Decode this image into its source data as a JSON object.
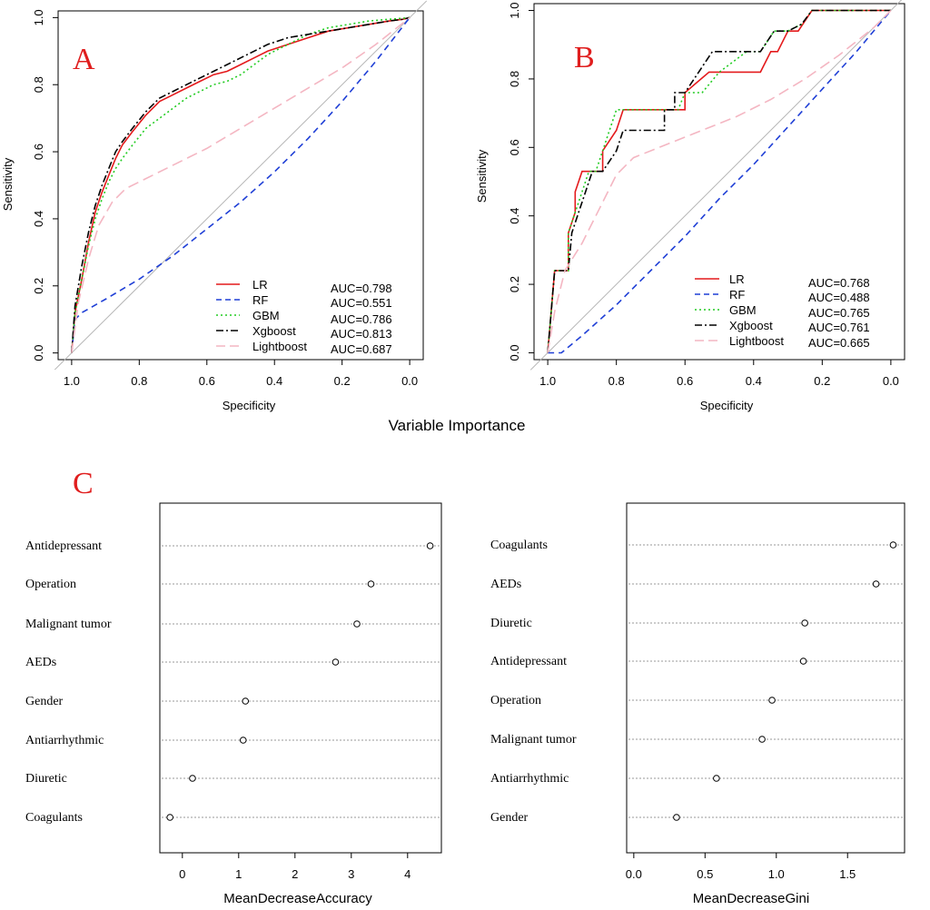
{
  "section_title": "Variable Importance",
  "chart_data": [
    {
      "panel": "A",
      "type": "line",
      "xlabel": "Specificity",
      "ylabel": "Sensitivity",
      "x_reversed": true,
      "xlim": [
        1.04,
        -0.04
      ],
      "ylim": [
        -0.02,
        1.02
      ],
      "xticks": [
        1.0,
        0.8,
        0.6,
        0.4,
        0.2,
        0.0
      ],
      "xtick_labels": [
        "1.0",
        "0.8",
        "0.6",
        "0.4",
        "0.2",
        "0.0"
      ],
      "yticks": [
        0.0,
        0.2,
        0.4,
        0.6,
        0.8,
        1.0
      ],
      "ytick_labels": [
        "0.0",
        "0.2",
        "0.4",
        "0.6",
        "0.8",
        "1.0"
      ],
      "reference_line": [
        [
          1,
          0
        ],
        [
          0,
          1
        ]
      ],
      "series": [
        {
          "name": "LR",
          "auc_label": "AUC=0.798",
          "color": "#e41a1c",
          "dash": "",
          "x": [
            1.0,
            0.99,
            0.97,
            0.95,
            0.93,
            0.91,
            0.89,
            0.87,
            0.85,
            0.82,
            0.78,
            0.74,
            0.7,
            0.66,
            0.62,
            0.58,
            0.54,
            0.5,
            0.46,
            0.42,
            0.36,
            0.3,
            0.24,
            0.18,
            0.12,
            0.06,
            0.02,
            0.0
          ],
          "y": [
            0.0,
            0.12,
            0.22,
            0.33,
            0.42,
            0.48,
            0.53,
            0.58,
            0.62,
            0.66,
            0.71,
            0.75,
            0.77,
            0.79,
            0.81,
            0.83,
            0.84,
            0.86,
            0.88,
            0.9,
            0.92,
            0.94,
            0.96,
            0.97,
            0.98,
            0.99,
            0.995,
            1.0
          ]
        },
        {
          "name": "RF",
          "auc_label": "AUC=0.551",
          "color": "#1f3fd6",
          "dash": "7,5",
          "x": [
            1.0,
            0.99,
            0.97,
            0.9,
            0.8,
            0.7,
            0.6,
            0.5,
            0.4,
            0.3,
            0.2,
            0.1,
            0.0
          ],
          "y": [
            0.0,
            0.1,
            0.12,
            0.16,
            0.22,
            0.29,
            0.37,
            0.45,
            0.54,
            0.64,
            0.75,
            0.87,
            1.0
          ]
        },
        {
          "name": "GBM",
          "auc_label": "AUC=0.786",
          "color": "#22cc22",
          "dash": "2,3",
          "x": [
            1.0,
            0.99,
            0.97,
            0.95,
            0.93,
            0.91,
            0.89,
            0.87,
            0.85,
            0.82,
            0.78,
            0.74,
            0.7,
            0.66,
            0.62,
            0.58,
            0.54,
            0.5,
            0.46,
            0.42,
            0.36,
            0.3,
            0.24,
            0.18,
            0.12,
            0.06,
            0.02,
            0.0
          ],
          "y": [
            0.0,
            0.12,
            0.22,
            0.32,
            0.4,
            0.46,
            0.51,
            0.55,
            0.58,
            0.62,
            0.67,
            0.7,
            0.73,
            0.76,
            0.78,
            0.8,
            0.81,
            0.83,
            0.86,
            0.89,
            0.92,
            0.95,
            0.97,
            0.98,
            0.99,
            0.995,
            0.998,
            1.0
          ]
        },
        {
          "name": "Xgboost",
          "auc_label": "AUC=0.813",
          "color": "#000000",
          "dash": "8,3,2,3",
          "x": [
            1.0,
            0.99,
            0.97,
            0.95,
            0.93,
            0.91,
            0.89,
            0.87,
            0.85,
            0.82,
            0.78,
            0.74,
            0.7,
            0.66,
            0.62,
            0.58,
            0.54,
            0.5,
            0.46,
            0.42,
            0.36,
            0.3,
            0.24,
            0.18,
            0.12,
            0.06,
            0.02,
            0.0
          ],
          "y": [
            0.0,
            0.14,
            0.26,
            0.36,
            0.44,
            0.5,
            0.55,
            0.6,
            0.63,
            0.67,
            0.72,
            0.76,
            0.78,
            0.8,
            0.82,
            0.84,
            0.86,
            0.88,
            0.9,
            0.92,
            0.94,
            0.95,
            0.96,
            0.97,
            0.98,
            0.99,
            0.995,
            1.0
          ]
        },
        {
          "name": "Lightboost",
          "auc_label": "AUC=0.687",
          "color": "#f4b6c2",
          "dash": "12,6",
          "x": [
            1.0,
            0.98,
            0.95,
            0.92,
            0.88,
            0.84,
            0.8,
            0.7,
            0.6,
            0.5,
            0.4,
            0.3,
            0.2,
            0.1,
            0.0
          ],
          "y": [
            0.0,
            0.15,
            0.28,
            0.38,
            0.45,
            0.49,
            0.51,
            0.56,
            0.61,
            0.67,
            0.73,
            0.79,
            0.85,
            0.92,
            1.0
          ]
        }
      ]
    },
    {
      "panel": "B",
      "type": "line",
      "xlabel": "Specificity",
      "ylabel": "Sensitivity",
      "x_reversed": true,
      "xlim": [
        1.04,
        -0.04
      ],
      "ylim": [
        -0.02,
        1.02
      ],
      "xticks": [
        1.0,
        0.8,
        0.6,
        0.4,
        0.2,
        0.0
      ],
      "xtick_labels": [
        "1.0",
        "0.8",
        "0.6",
        "0.4",
        "0.2",
        "0.0"
      ],
      "yticks": [
        0.0,
        0.2,
        0.4,
        0.6,
        0.8,
        1.0
      ],
      "ytick_labels": [
        "0.0",
        "0.2",
        "0.4",
        "0.6",
        "0.8",
        "1.0"
      ],
      "reference_line": [
        [
          1,
          0
        ],
        [
          0,
          1
        ]
      ],
      "series": [
        {
          "name": "LR",
          "auc_label": "AUC=0.768",
          "color": "#e41a1c",
          "dash": "",
          "x": [
            1.0,
            0.99,
            0.98,
            0.96,
            0.94,
            0.94,
            0.92,
            0.92,
            0.9,
            0.88,
            0.88,
            0.84,
            0.84,
            0.8,
            0.78,
            0.78,
            0.6,
            0.6,
            0.53,
            0.53,
            0.38,
            0.35,
            0.33,
            0.3,
            0.27,
            0.23,
            0.21,
            0.1,
            0.0
          ],
          "y": [
            0.0,
            0.12,
            0.24,
            0.24,
            0.24,
            0.35,
            0.41,
            0.47,
            0.53,
            0.53,
            0.53,
            0.53,
            0.59,
            0.65,
            0.71,
            0.71,
            0.71,
            0.76,
            0.82,
            0.82,
            0.82,
            0.88,
            0.88,
            0.94,
            0.94,
            1.0,
            1.0,
            1.0,
            1.0
          ]
        },
        {
          "name": "RF",
          "auc_label": "AUC=0.488",
          "color": "#1f3fd6",
          "dash": "7,5",
          "x": [
            1.0,
            0.98,
            0.96,
            0.9,
            0.8,
            0.7,
            0.6,
            0.5,
            0.4,
            0.3,
            0.2,
            0.1,
            0.0
          ],
          "y": [
            0.0,
            0.0,
            0.0,
            0.05,
            0.14,
            0.24,
            0.34,
            0.45,
            0.55,
            0.66,
            0.77,
            0.88,
            1.0
          ]
        },
        {
          "name": "GBM",
          "auc_label": "AUC=0.765",
          "color": "#22cc22",
          "dash": "2,3",
          "x": [
            1.0,
            0.99,
            0.98,
            0.96,
            0.94,
            0.94,
            0.92,
            0.9,
            0.88,
            0.86,
            0.84,
            0.82,
            0.8,
            0.78,
            0.62,
            0.6,
            0.55,
            0.5,
            0.42,
            0.38,
            0.34,
            0.3,
            0.26,
            0.23,
            0.21,
            0.1,
            0.0
          ],
          "y": [
            0.0,
            0.12,
            0.24,
            0.24,
            0.24,
            0.35,
            0.41,
            0.47,
            0.53,
            0.53,
            0.59,
            0.65,
            0.71,
            0.71,
            0.71,
            0.76,
            0.76,
            0.82,
            0.88,
            0.88,
            0.94,
            0.94,
            0.96,
            1.0,
            1.0,
            1.0,
            1.0
          ]
        },
        {
          "name": "Xgboost",
          "auc_label": "AUC=0.761",
          "color": "#000000",
          "dash": "8,3,2,3",
          "x": [
            1.0,
            0.99,
            0.98,
            0.96,
            0.94,
            0.93,
            0.91,
            0.89,
            0.87,
            0.84,
            0.8,
            0.78,
            0.66,
            0.66,
            0.63,
            0.63,
            0.6,
            0.56,
            0.52,
            0.45,
            0.38,
            0.34,
            0.3,
            0.26,
            0.23,
            0.21,
            0.1,
            0.0
          ],
          "y": [
            0.0,
            0.12,
            0.24,
            0.24,
            0.24,
            0.35,
            0.41,
            0.47,
            0.53,
            0.53,
            0.59,
            0.65,
            0.65,
            0.71,
            0.71,
            0.76,
            0.76,
            0.82,
            0.88,
            0.88,
            0.88,
            0.94,
            0.94,
            0.96,
            1.0,
            1.0,
            1.0,
            1.0
          ]
        },
        {
          "name": "Lightboost",
          "auc_label": "AUC=0.665",
          "color": "#f4b6c2",
          "dash": "12,6",
          "x": [
            1.0,
            0.98,
            0.95,
            0.9,
            0.85,
            0.8,
            0.75,
            0.65,
            0.55,
            0.45,
            0.35,
            0.25,
            0.15,
            0.05,
            0.0
          ],
          "y": [
            0.0,
            0.12,
            0.24,
            0.32,
            0.42,
            0.52,
            0.57,
            0.61,
            0.65,
            0.69,
            0.74,
            0.8,
            0.87,
            0.95,
            1.0
          ]
        }
      ]
    },
    {
      "panel": "C",
      "type": "scatter",
      "subtype": "dotchart",
      "xlabel": "MeanDecreaseAccuracy",
      "xlim": [
        -0.4,
        4.6
      ],
      "xticks": [
        0,
        1,
        2,
        3,
        4
      ],
      "xtick_labels": [
        "0",
        "1",
        "2",
        "3",
        "4"
      ],
      "categories": [
        "Antidepressant",
        "Operation",
        "Malignant tumor",
        "AEDs",
        "Gender",
        "Antiarrhythmic",
        "Diuretic",
        "Coagulants"
      ],
      "values": [
        4.4,
        3.35,
        3.1,
        2.72,
        1.12,
        1.08,
        0.18,
        -0.22
      ]
    },
    {
      "panel": "C",
      "type": "scatter",
      "subtype": "dotchart",
      "xlabel": "MeanDecreaseGini",
      "xlim": [
        -0.05,
        1.9
      ],
      "xticks": [
        0.0,
        0.5,
        1.0,
        1.5
      ],
      "xtick_labels": [
        "0.0",
        "0.5",
        "1.0",
        "1.5"
      ],
      "categories": [
        "Coagulants",
        "AEDs",
        "Diuretic",
        "Antidepressant",
        "Operation",
        "Malignant tumor",
        "Antiarrhythmic",
        "Gender"
      ],
      "values": [
        1.82,
        1.7,
        1.2,
        1.19,
        0.97,
        0.9,
        0.58,
        0.3
      ]
    }
  ]
}
